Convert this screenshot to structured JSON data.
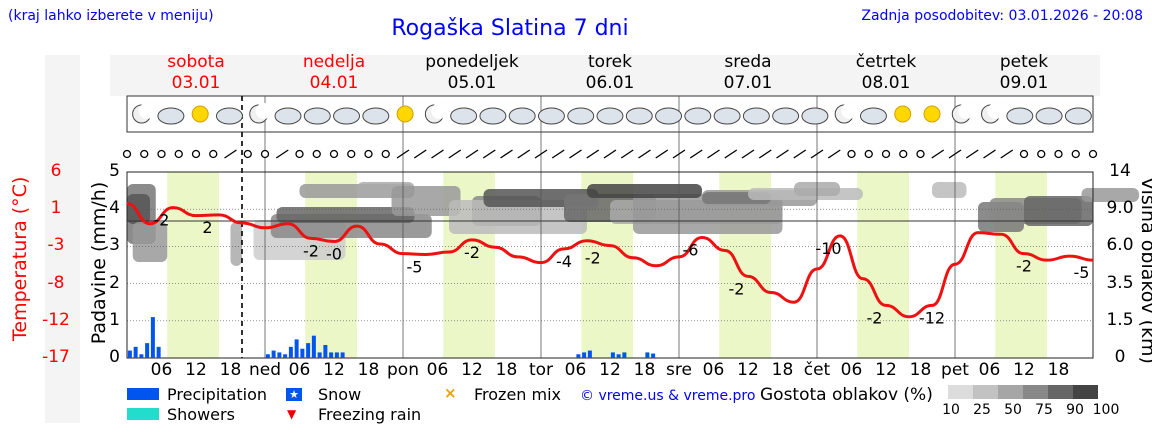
{
  "header": {
    "hint": "(kraj lahko izberete v meniju)",
    "title": "Rogaška Slatina 7 dni",
    "updated": "Zadnja posodobitev: 03.01.2026 - 20:08"
  },
  "days": [
    {
      "name": "sobota",
      "date": "03.01",
      "weekend": true
    },
    {
      "name": "nedelja",
      "date": "04.01",
      "weekend": true
    },
    {
      "name": "ponedeljek",
      "date": "05.01",
      "weekend": false
    },
    {
      "name": "torek",
      "date": "06.01",
      "weekend": false
    },
    {
      "name": "sreda",
      "date": "07.01",
      "weekend": false
    },
    {
      "name": "četrtek",
      "date": "08.01",
      "weekend": false
    },
    {
      "name": "petek",
      "date": "09.01",
      "weekend": false
    }
  ],
  "axes": {
    "temp_label": "Temperatura (°C)",
    "temp_ticks": [
      "6",
      "1",
      "-3",
      "-8",
      "-12",
      "-17"
    ],
    "precip_label": "Padavine (mm/h)",
    "precip_ticks": [
      "5",
      "4",
      "3",
      "2",
      "1",
      "0"
    ],
    "cloud_label": "Višina oblakov (km)",
    "cloud_ticks": [
      "14",
      "9.0",
      "6.0",
      "3.5",
      "1.5",
      "0"
    ]
  },
  "x_axis": {
    "labels": [
      "06",
      "12",
      "18",
      "ned",
      "06",
      "12",
      "18",
      "pon",
      "06",
      "12",
      "18",
      "tor",
      "06",
      "12",
      "18",
      "sre",
      "06",
      "12",
      "18",
      "čet",
      "06",
      "12",
      "18",
      "pet",
      "06",
      "12",
      "18"
    ]
  },
  "chart_data": {
    "type": "line",
    "title": "Rogaška Slatina 7 dni",
    "xlabel": "",
    "ylabel": "Temperatura (°C)",
    "ylim": [
      -17,
      6
    ],
    "x_unit": "hours since Saturday 03.01 00:00",
    "xlim": [
      0,
      168
    ],
    "series": [
      {
        "name": "Temperatura",
        "x": [
          0,
          4,
          8,
          12,
          16,
          20,
          24,
          28,
          32,
          36,
          40,
          44,
          48,
          52,
          56,
          60,
          64,
          68,
          72,
          76,
          80,
          84,
          88,
          92,
          96,
          100,
          104,
          108,
          112,
          116,
          120,
          124,
          128,
          132,
          136,
          140,
          144,
          148,
          152,
          156,
          160,
          164,
          168
        ],
        "values": [
          2.1,
          -0.4,
          1.6,
          0.6,
          0.7,
          -0.3,
          -0.9,
          -0.4,
          -2.2,
          -2.6,
          -0.7,
          -2.9,
          -4.1,
          -4.2,
          -3.9,
          -2.4,
          -3.3,
          -4.5,
          -5.2,
          -3.5,
          -2.5,
          -3.1,
          -4.6,
          -5.6,
          -4.5,
          -2.1,
          -3.7,
          -6.9,
          -8.9,
          -10.1,
          -6.0,
          -1.9,
          -7.2,
          -10.5,
          -11.9,
          -10.5,
          -5.4,
          -1.5,
          -1.7,
          -4.1,
          -4.9,
          -4.4,
          -4.9
        ]
      },
      {
        "name": "Precipitation",
        "unit": "mm/h",
        "x": [
          0.5,
          1.5,
          2.5,
          3.5,
          4.5,
          5.5,
          24.5,
          25.5,
          26.5,
          27.5,
          28.5,
          29.5,
          30.5,
          31.5,
          32.5,
          33.5,
          34.5,
          35.5,
          36.5,
          37.5,
          78.5,
          79.5,
          80.5,
          84.5,
          85.5,
          86.5,
          90.5,
          91.5
        ],
        "values": [
          0.2,
          0.3,
          0.1,
          0.4,
          1.1,
          0.3,
          0.1,
          0.2,
          0.15,
          0.1,
          0.3,
          0.5,
          0.25,
          0.4,
          0.6,
          0.15,
          0.35,
          0.15,
          0.15,
          0.15,
          0.1,
          0.15,
          0.2,
          0.15,
          0.1,
          0.15,
          0.15,
          0.12
        ]
      }
    ],
    "temperature_labels": [
      {
        "x": 6,
        "text": "-2"
      },
      {
        "x": 14,
        "text": "2"
      },
      {
        "x": 32,
        "text": "-2"
      },
      {
        "x": 36,
        "text": "-0"
      },
      {
        "x": 50,
        "text": "-5"
      },
      {
        "x": 60,
        "text": "-2"
      },
      {
        "x": 76,
        "text": "-4"
      },
      {
        "x": 81,
        "text": "-2"
      },
      {
        "x": 98,
        "text": "-6"
      },
      {
        "x": 106,
        "text": "-2"
      },
      {
        "x": 122,
        "text": "-10"
      },
      {
        "x": 130,
        "text": "-2"
      },
      {
        "x": 140,
        "text": "-12"
      },
      {
        "x": 156,
        "text": "-2"
      },
      {
        "x": 166,
        "text": "-5"
      }
    ],
    "daylight_hours": [
      7,
      16
    ],
    "now_hour": 20
  },
  "legend": {
    "precipitation": "Precipitation",
    "showers": "Showers",
    "snow": "Snow",
    "freezing_rain": "Freezing rain",
    "frozen_mix": "Frozen mix",
    "credit": "© vreme.us & vreme.pro",
    "cloud_cover_label": "Gostota oblakov (%)",
    "cloud_cover_ticks": [
      "10",
      "25",
      "50",
      "75",
      "90",
      "100"
    ]
  },
  "colors": {
    "temp_line": "#ee1111",
    "precip": "#0055ee",
    "showers": "#22ddcc",
    "daylight": "#ecf7c8",
    "title_blue": "#0000ff"
  }
}
